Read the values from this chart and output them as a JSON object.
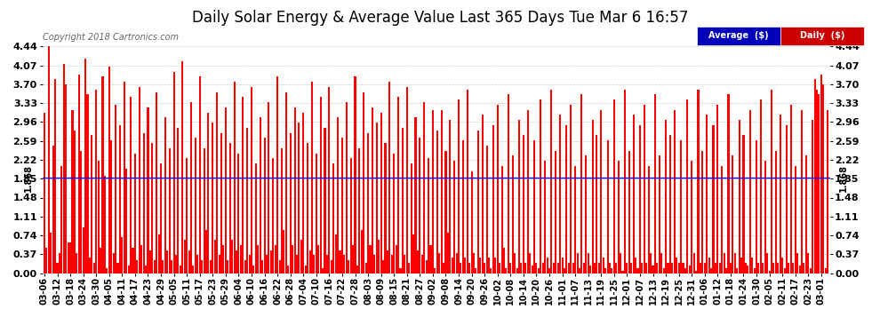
{
  "title": "Daily Solar Energy & Average Value Last 365 Days Tue Mar 6 16:57",
  "copyright_text": "Copyright 2018 Cartronics.com",
  "average_value": 1.868,
  "ylim": [
    0.0,
    4.44
  ],
  "yticks": [
    0.0,
    0.37,
    0.74,
    1.11,
    1.48,
    1.85,
    2.22,
    2.59,
    2.96,
    3.33,
    3.7,
    4.07,
    4.44
  ],
  "bar_color": "#ff0000",
  "avg_line_color": "#0000ff",
  "background_color": "#ffffff",
  "grid_color": "#cccccc",
  "title_fontsize": 12,
  "legend_labels": [
    "Average  ($)",
    "Daily  ($)"
  ],
  "legend_colors": [
    "#0000bb",
    "#cc0000"
  ],
  "left_label": "1.868",
  "right_label": "1.868",
  "x_labels": [
    "03-06",
    "03-12",
    "03-18",
    "03-24",
    "03-30",
    "04-05",
    "04-11",
    "04-17",
    "04-23",
    "04-29",
    "05-05",
    "05-11",
    "05-17",
    "05-23",
    "05-29",
    "06-04",
    "06-10",
    "06-16",
    "06-22",
    "06-28",
    "07-04",
    "07-10",
    "07-16",
    "07-22",
    "07-28",
    "08-03",
    "08-09",
    "08-15",
    "08-21",
    "08-27",
    "09-02",
    "09-08",
    "09-14",
    "09-20",
    "09-26",
    "10-02",
    "10-08",
    "10-14",
    "10-20",
    "10-26",
    "11-01",
    "11-07",
    "11-13",
    "11-19",
    "11-25",
    "12-01",
    "12-07",
    "12-13",
    "12-19",
    "12-25",
    "12-31",
    "01-06",
    "01-12",
    "01-18",
    "01-24",
    "01-30",
    "02-05",
    "02-11",
    "02-17",
    "02-23",
    "03-01"
  ],
  "num_bars": 365,
  "values": [
    3.15,
    0.5,
    4.44,
    0.8,
    2.5,
    3.8,
    0.2,
    0.4,
    2.1,
    4.1,
    3.7,
    0.6,
    0.6,
    3.2,
    2.8,
    0.4,
    3.9,
    2.4,
    0.9,
    4.2,
    3.5,
    0.3,
    2.7,
    0.2,
    3.6,
    2.2,
    0.5,
    3.85,
    1.9,
    0.1,
    4.05,
    2.6,
    0.4,
    3.3,
    0.2,
    2.9,
    0.7,
    3.75,
    2.05,
    0.15,
    3.45,
    0.5,
    2.35,
    0.25,
    3.65,
    0.55,
    2.75,
    0.15,
    3.25,
    0.45,
    2.55,
    0.25,
    3.55,
    0.75,
    2.15,
    0.25,
    3.05,
    0.45,
    2.45,
    0.25,
    3.95,
    0.35,
    2.85,
    0.15,
    4.15,
    0.65,
    2.25,
    0.45,
    3.35,
    0.15,
    2.65,
    0.35,
    3.85,
    0.25,
    2.45,
    0.85,
    3.15,
    0.25,
    2.95,
    0.65,
    3.55,
    0.35,
    2.75,
    0.55,
    3.25,
    0.25,
    2.55,
    0.65,
    3.75,
    0.45,
    2.35,
    0.55,
    3.45,
    0.25,
    2.85,
    0.35,
    3.65,
    0.15,
    2.15,
    0.55,
    3.05,
    0.25,
    2.65,
    0.35,
    3.35,
    0.45,
    2.25,
    0.55,
    3.85,
    0.25,
    2.45,
    0.85,
    3.55,
    0.15,
    2.75,
    0.55,
    3.25,
    0.35,
    2.95,
    0.65,
    3.15,
    0.15,
    2.55,
    0.45,
    3.75,
    0.35,
    2.35,
    0.55,
    3.45,
    0.1,
    2.85,
    0.35,
    3.65,
    0.25,
    2.15,
    0.75,
    3.05,
    0.45,
    2.65,
    0.35,
    3.35,
    0.25,
    2.25,
    0.55,
    3.85,
    0.15,
    2.45,
    0.85,
    3.55,
    0.2,
    2.75,
    0.55,
    3.25,
    0.35,
    2.95,
    0.65,
    3.15,
    0.25,
    2.55,
    0.45,
    3.75,
    0.35,
    2.35,
    0.55,
    3.45,
    0.1,
    2.85,
    0.35,
    3.65,
    0.2,
    2.15,
    0.75,
    3.05,
    0.45,
    2.65,
    0.35,
    3.35,
    0.25,
    2.25,
    0.55,
    3.2,
    0.1,
    2.8,
    0.4,
    3.2,
    0.2,
    2.4,
    0.8,
    3.0,
    0.3,
    2.2,
    0.4,
    3.4,
    0.2,
    2.6,
    0.3,
    3.6,
    0.2,
    2.0,
    0.4,
    0.1,
    2.8,
    0.3,
    3.1,
    0.2,
    2.5,
    0.3,
    0.1,
    2.9,
    0.3,
    3.3,
    0.2,
    2.1,
    0.5,
    0.1,
    3.5,
    0.2,
    2.3,
    0.4,
    0.1,
    3.0,
    0.2,
    2.7,
    0.2,
    3.2,
    0.4,
    0.15,
    2.6,
    0.2,
    0.1,
    3.4,
    0.2,
    2.2,
    0.3,
    0.1,
    3.6,
    0.2,
    2.4,
    0.2,
    3.1,
    0.3,
    0.1,
    2.9,
    0.2,
    3.3,
    0.2,
    2.1,
    0.4,
    0.1,
    3.5,
    0.2,
    2.3,
    0.4,
    0.15,
    3.0,
    0.2,
    2.7,
    0.2,
    3.2,
    0.3,
    0.1,
    2.6,
    0.2,
    0.1,
    3.4,
    0.2,
    2.2,
    0.4,
    0.05,
    3.6,
    0.2,
    2.4,
    0.2,
    3.1,
    0.3,
    0.1,
    2.9,
    0.2,
    3.3,
    0.2,
    2.1,
    0.4,
    0.15,
    3.5,
    0.2,
    2.3,
    0.4,
    0.1,
    3.0,
    0.2,
    2.7,
    0.2,
    3.2,
    0.3,
    0.2,
    2.6,
    0.2,
    0.1,
    3.4,
    0.15,
    2.2,
    0.4,
    0.05,
    3.6,
    0.2,
    2.4,
    0.2,
    3.1,
    0.3,
    0.1,
    2.9,
    0.2,
    3.3,
    0.2,
    2.1,
    0.4,
    0.1,
    3.5,
    0.2,
    2.3,
    0.4,
    0.1,
    3.0,
    0.3,
    2.7,
    0.2,
    0.15,
    3.2,
    0.3,
    0.1,
    2.6,
    0.2,
    3.4,
    0.2,
    2.2,
    0.4,
    0.05,
    3.6,
    0.2,
    2.4,
    0.2,
    3.1,
    0.3,
    0.1,
    2.9,
    0.2,
    3.3,
    0.2,
    2.1,
    0.4,
    0.15,
    3.2,
    0.2,
    2.3,
    0.4,
    0.1,
    3.0,
    3.8,
    3.6,
    3.5,
    3.9,
    3.7,
    0.1,
    3.2
  ]
}
